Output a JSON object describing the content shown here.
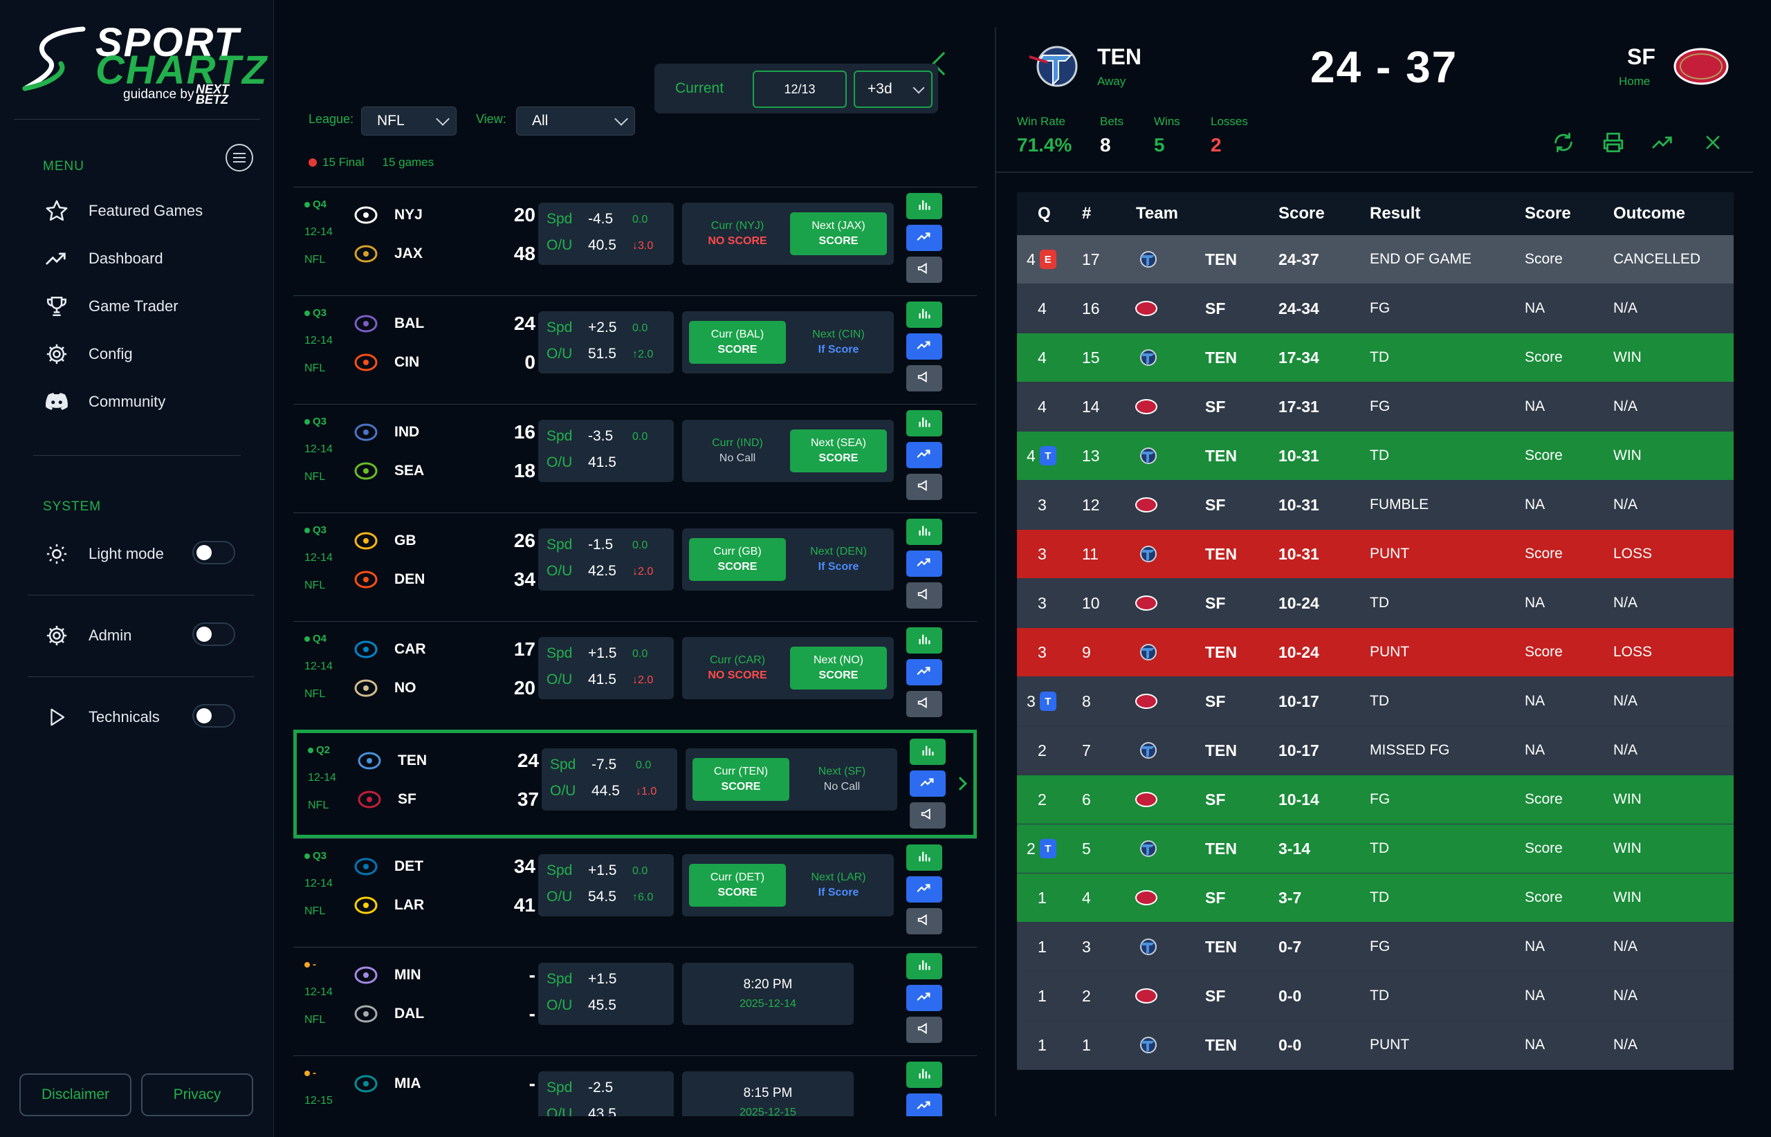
{
  "brand": {
    "line1": "SPORT",
    "line2": "CHARTZ",
    "guidance": "guidance by",
    "partner_top": "NEXT",
    "partner_bottom": "BETZ"
  },
  "menu": {
    "label": "MENU",
    "items": [
      {
        "label": "Featured Games",
        "icon": "star-icon"
      },
      {
        "label": "Dashboard",
        "icon": "trend-up-icon"
      },
      {
        "label": "Game Trader",
        "icon": "trophy-icon"
      },
      {
        "label": "Config",
        "icon": "gear-icon"
      },
      {
        "label": "Community",
        "icon": "discord-icon"
      }
    ]
  },
  "system": {
    "label": "SYSTEM",
    "light_mode": "Light mode",
    "admin": "Admin",
    "technicals": "Technicals"
  },
  "footer": {
    "disclaimer": "Disclaimer",
    "privacy": "Privacy"
  },
  "filters": {
    "league_label": "League:",
    "league_value": "NFL",
    "view_label": "View:",
    "view_value": "All",
    "current": "Current",
    "date": "12/13",
    "range": "+3d",
    "final_count": "15 Final",
    "games_count": "15 games"
  },
  "games": [
    {
      "q": "Q4",
      "date": "12-14",
      "league": "NFL",
      "t1": "NYJ",
      "s1": "20",
      "t2": "JAX",
      "s2": "48",
      "spd": "-4.5",
      "spd_m": "0.0",
      "ou": "40.5",
      "ou_m": "↓3.0",
      "ou_dir": "down",
      "c1_t": "Curr (NYJ)",
      "c1_v": "NO SCORE",
      "c1_on": false,
      "c1_cls": "red",
      "c2_t": "Next (JAX)",
      "c2_v": "SCORE",
      "c2_on": true,
      "c2_cls": ""
    },
    {
      "q": "Q3",
      "date": "12-14",
      "league": "NFL",
      "t1": "BAL",
      "s1": "24",
      "t2": "CIN",
      "s2": "0",
      "spd": "+2.5",
      "spd_m": "0.0",
      "ou": "51.5",
      "ou_m": "↑2.0",
      "ou_dir": "up",
      "c1_t": "Curr (BAL)",
      "c1_v": "SCORE",
      "c1_on": true,
      "c1_cls": "",
      "c2_t": "Next (CIN)",
      "c2_v": "If Score",
      "c2_on": false,
      "c2_cls": "blue"
    },
    {
      "q": "Q3",
      "date": "12-14",
      "league": "NFL",
      "t1": "IND",
      "s1": "16",
      "t2": "SEA",
      "s2": "18",
      "spd": "-3.5",
      "spd_m": "0.0",
      "ou": "41.5",
      "ou_m": "",
      "ou_dir": "",
      "c1_t": "Curr (IND)",
      "c1_v": "No Call",
      "c1_on": false,
      "c1_cls": "grey",
      "c2_t": "Next (SEA)",
      "c2_v": "SCORE",
      "c2_on": true,
      "c2_cls": ""
    },
    {
      "q": "Q3",
      "date": "12-14",
      "league": "NFL",
      "t1": "GB",
      "s1": "26",
      "t2": "DEN",
      "s2": "34",
      "spd": "-1.5",
      "spd_m": "0.0",
      "ou": "42.5",
      "ou_m": "↓2.0",
      "ou_dir": "down",
      "c1_t": "Curr (GB)",
      "c1_v": "SCORE",
      "c1_on": true,
      "c1_cls": "",
      "c2_t": "Next (DEN)",
      "c2_v": "If Score",
      "c2_on": false,
      "c2_cls": "blue"
    },
    {
      "q": "Q4",
      "date": "12-14",
      "league": "NFL",
      "t1": "CAR",
      "s1": "17",
      "t2": "NO",
      "s2": "20",
      "spd": "+1.5",
      "spd_m": "0.0",
      "ou": "41.5",
      "ou_m": "↓2.0",
      "ou_dir": "down",
      "c1_t": "Curr (CAR)",
      "c1_v": "NO SCORE",
      "c1_on": false,
      "c1_cls": "red",
      "c2_t": "Next (NO)",
      "c2_v": "SCORE",
      "c2_on": true,
      "c2_cls": ""
    },
    {
      "q": "Q2",
      "date": "12-14",
      "league": "NFL",
      "t1": "TEN",
      "s1": "24",
      "t2": "SF",
      "s2": "37",
      "spd": "-7.5",
      "spd_m": "0.0",
      "ou": "44.5",
      "ou_m": "↓1.0",
      "ou_dir": "down",
      "c1_t": "Curr (TEN)",
      "c1_v": "SCORE",
      "c1_on": true,
      "c1_cls": "",
      "c2_t": "Next (SF)",
      "c2_v": "No Call",
      "c2_on": false,
      "c2_cls": "grey",
      "selected": true
    },
    {
      "q": "Q3",
      "date": "12-14",
      "league": "NFL",
      "t1": "DET",
      "s1": "34",
      "t2": "LAR",
      "s2": "41",
      "spd": "+1.5",
      "spd_m": "0.0",
      "ou": "54.5",
      "ou_m": "↑6.0",
      "ou_dir": "up",
      "c1_t": "Curr (DET)",
      "c1_v": "SCORE",
      "c1_on": true,
      "c1_cls": "",
      "c2_t": "Next (LAR)",
      "c2_v": "If Score",
      "c2_on": false,
      "c2_cls": "blue"
    },
    {
      "q": "-",
      "date": "12-14",
      "league": "NFL",
      "t1": "MIN",
      "s1": "-",
      "t2": "DAL",
      "s2": "-",
      "spd": "+1.5",
      "spd_m": "",
      "ou": "45.5",
      "ou_m": "",
      "ou_dir": "",
      "sched_time": "8:20 PM",
      "sched_date": "2025-12-14",
      "scheduled": true
    },
    {
      "q": "-",
      "date": "12-15",
      "league": "NFL",
      "t1": "MIA",
      "s1": "-",
      "t2": "",
      "s2": "",
      "spd": "-2.5",
      "spd_m": "",
      "ou": "43.5",
      "ou_m": "",
      "ou_dir": "",
      "sched_time": "8:15 PM",
      "sched_date": "2025-12-15",
      "scheduled": true
    }
  ],
  "detail": {
    "away": "TEN",
    "away_label": "Away",
    "home": "SF",
    "home_label": "Home",
    "score": "24 - 37",
    "stats": [
      {
        "label": "Win Rate",
        "value": "71.4%",
        "color": "#22b14c"
      },
      {
        "label": "Bets",
        "value": "8",
        "color": "#ffffff"
      },
      {
        "label": "Wins",
        "value": "5",
        "color": "#22b14c"
      },
      {
        "label": "Losses",
        "value": "2",
        "color": "#ff4a4a"
      }
    ],
    "columns": {
      "q": "Q",
      "num": "#",
      "team": "Team",
      "score": "Score",
      "result": "Result",
      "score2": "Score",
      "outcome": "Outcome"
    },
    "rows": [
      {
        "q": "4",
        "badge": "E",
        "n": "17",
        "team": "TEN",
        "score": "24-37",
        "result": "END OF GAME",
        "s2": "Score",
        "outcome": "CANCELLED",
        "type": "first"
      },
      {
        "q": "4",
        "badge": "",
        "n": "16",
        "team": "SF",
        "score": "24-34",
        "result": "FG",
        "s2": "NA",
        "outcome": "N/A",
        "type": ""
      },
      {
        "q": "4",
        "badge": "",
        "n": "15",
        "team": "TEN",
        "score": "17-34",
        "result": "TD",
        "s2": "Score",
        "outcome": "WIN",
        "type": "win"
      },
      {
        "q": "4",
        "badge": "",
        "n": "14",
        "team": "SF",
        "score": "17-31",
        "result": "FG",
        "s2": "NA",
        "outcome": "N/A",
        "type": ""
      },
      {
        "q": "4",
        "badge": "T",
        "n": "13",
        "team": "TEN",
        "score": "10-31",
        "result": "TD",
        "s2": "Score",
        "outcome": "WIN",
        "type": "win"
      },
      {
        "q": "3",
        "badge": "",
        "n": "12",
        "team": "SF",
        "score": "10-31",
        "result": "FUMBLE",
        "s2": "NA",
        "outcome": "N/A",
        "type": ""
      },
      {
        "q": "3",
        "badge": "",
        "n": "11",
        "team": "TEN",
        "score": "10-31",
        "result": "PUNT",
        "s2": "Score",
        "outcome": "LOSS",
        "type": "loss"
      },
      {
        "q": "3",
        "badge": "",
        "n": "10",
        "team": "SF",
        "score": "10-24",
        "result": "TD",
        "s2": "NA",
        "outcome": "N/A",
        "type": ""
      },
      {
        "q": "3",
        "badge": "",
        "n": "9",
        "team": "TEN",
        "score": "10-24",
        "result": "PUNT",
        "s2": "Score",
        "outcome": "LOSS",
        "type": "loss"
      },
      {
        "q": "3",
        "badge": "T",
        "n": "8",
        "team": "SF",
        "score": "10-17",
        "result": "TD",
        "s2": "NA",
        "outcome": "N/A",
        "type": ""
      },
      {
        "q": "2",
        "badge": "",
        "n": "7",
        "team": "TEN",
        "score": "10-17",
        "result": "MISSED FG",
        "s2": "NA",
        "outcome": "N/A",
        "type": ""
      },
      {
        "q": "2",
        "badge": "",
        "n": "6",
        "team": "SF",
        "score": "10-14",
        "result": "FG",
        "s2": "Score",
        "outcome": "WIN",
        "type": "win"
      },
      {
        "q": "2",
        "badge": "T",
        "n": "5",
        "team": "TEN",
        "score": "3-14",
        "result": "TD",
        "s2": "Score",
        "outcome": "WIN",
        "type": "win"
      },
      {
        "q": "1",
        "badge": "",
        "n": "4",
        "team": "SF",
        "score": "3-7",
        "result": "TD",
        "s2": "Score",
        "outcome": "WIN",
        "type": "win"
      },
      {
        "q": "1",
        "badge": "",
        "n": "3",
        "team": "TEN",
        "score": "0-7",
        "result": "FG",
        "s2": "NA",
        "outcome": "N/A",
        "type": ""
      },
      {
        "q": "1",
        "badge": "",
        "n": "2",
        "team": "SF",
        "score": "0-0",
        "result": "TD",
        "s2": "NA",
        "outcome": "N/A",
        "type": ""
      },
      {
        "q": "1",
        "badge": "",
        "n": "1",
        "team": "TEN",
        "score": "0-0",
        "result": "PUNT",
        "s2": "NA",
        "outcome": "N/A",
        "type": ""
      }
    ]
  }
}
